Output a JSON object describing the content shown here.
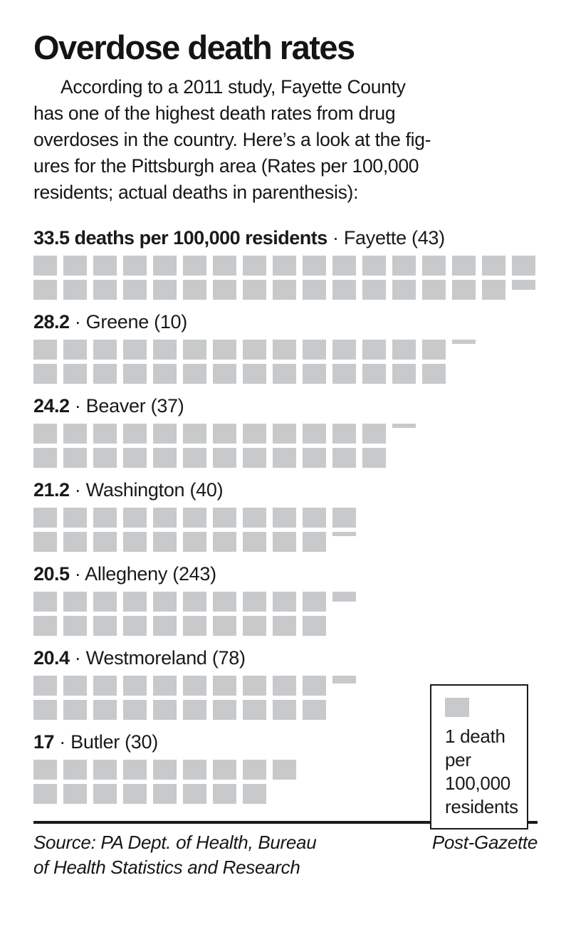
{
  "title": "Overdose death rates",
  "intro_lines": [
    "According to a 2011 study, Fayette County",
    "has one of the highest death rates from drug",
    "overdoses in the country. Here’s a look at the fig-",
    "ures for the Pittsburgh area (Rates per 100,000",
    "residents; actual deaths in parenthesis):"
  ],
  "separator": "·",
  "counties": [
    {
      "rate": 33.5,
      "rate_text": "33.5 deaths per 100,000 residents",
      "name_text": "Fayette (43)",
      "rows": [
        {
          "full": 17,
          "partial": 0
        },
        {
          "full": 16,
          "partial": 0.5
        }
      ]
    },
    {
      "rate": 28.2,
      "rate_text": "28.2",
      "name_text": "Greene (10)",
      "rows": [
        {
          "full": 14,
          "partial": 0.2
        },
        {
          "full": 14,
          "partial": 0
        }
      ]
    },
    {
      "rate": 24.2,
      "rate_text": "24.2",
      "name_text": "Beaver (37)",
      "rows": [
        {
          "full": 12,
          "partial": 0.2
        },
        {
          "full": 12,
          "partial": 0
        }
      ]
    },
    {
      "rate": 21.2,
      "rate_text": "21.2",
      "name_text": "Washington (40)",
      "rows": [
        {
          "full": 11,
          "partial": 0
        },
        {
          "full": 10,
          "partial": 0.2
        }
      ]
    },
    {
      "rate": 20.5,
      "rate_text": "20.5",
      "name_text": "Allegheny (243)",
      "rows": [
        {
          "full": 10,
          "partial": 0.5
        },
        {
          "full": 10,
          "partial": 0
        }
      ]
    },
    {
      "rate": 20.4,
      "rate_text": "20.4",
      "name_text": "Westmoreland (78)",
      "rows": [
        {
          "full": 10,
          "partial": 0.4
        },
        {
          "full": 10,
          "partial": 0
        }
      ]
    },
    {
      "rate": 17,
      "rate_text": "17",
      "name_text": "Butler (30)",
      "rows": [
        {
          "full": 9,
          "partial": 0
        },
        {
          "full": 8,
          "partial": 0
        }
      ]
    }
  ],
  "legend": {
    "lines": [
      "1 death",
      "per",
      "100,000",
      "residents"
    ]
  },
  "footer": {
    "source_lines": [
      "Source: PA Dept. of Health, Bureau",
      "of Health Statistics and Research"
    ],
    "credit": "Post-Gazette"
  },
  "colors": {
    "square_gray": "#c8c9cb",
    "text_black": "#1a1a1a"
  },
  "chart_data": {
    "type": "bar",
    "title": "Overdose death rates",
    "subtitle": "According to a 2011 study, Fayette County has one of the highest death rates from drug overdoses in the country. Here’s a look at the figures for the Pittsburgh area (Rates per 100,000 residents; actual deaths in parenthesis):",
    "categories": [
      "Fayette",
      "Greene",
      "Beaver",
      "Washington",
      "Allegheny",
      "Westmoreland",
      "Butler"
    ],
    "values": [
      33.5,
      28.2,
      24.2,
      21.2,
      20.5,
      20.4,
      17
    ],
    "actual_deaths": [
      43,
      10,
      37,
      40,
      243,
      78,
      30
    ],
    "unit": "deaths per 100,000 residents",
    "legend": "1 death per 100,000 residents",
    "style": "pictogram-waffle, 1 square = 1 death per 100,000, two stacked rows per county, partial square height = fractional remainder",
    "source": "PA Dept. of Health, Bureau of Health Statistics and Research",
    "credit": "Post-Gazette"
  }
}
